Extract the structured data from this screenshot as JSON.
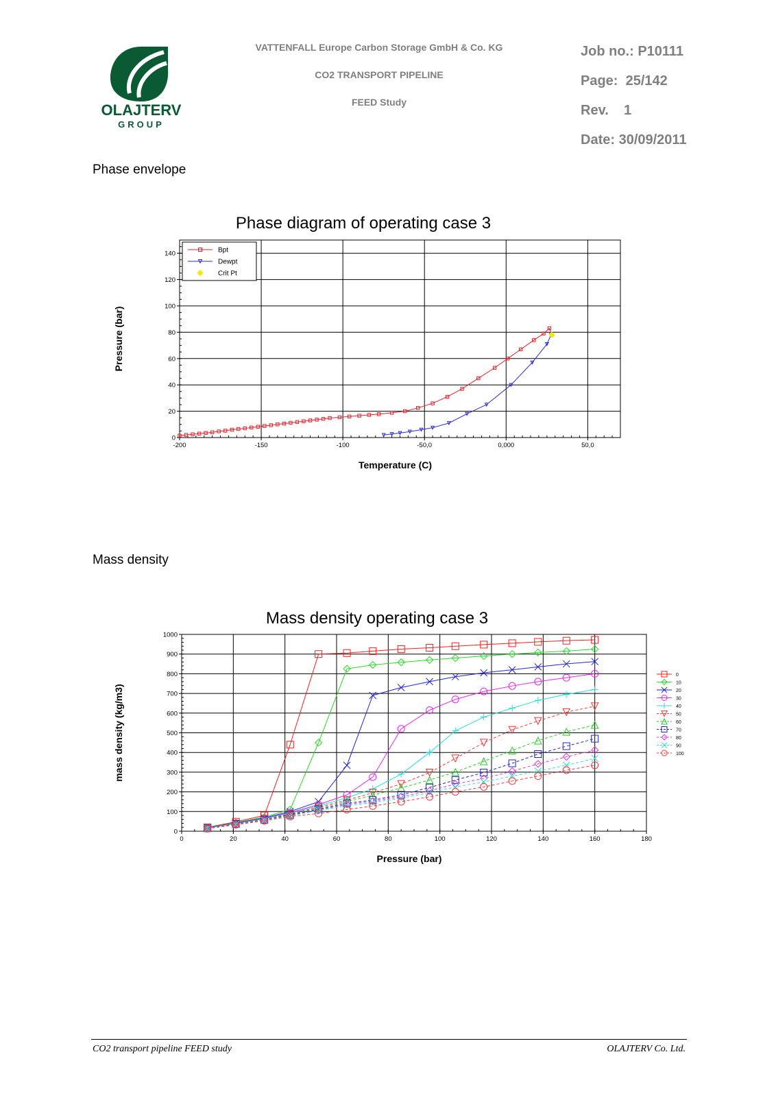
{
  "header": {
    "logo_text": "OLAJTERV",
    "logo_sub": "GROUP",
    "company": "VATTENFALL Europe Carbon Storage GmbH & Co. KG",
    "project": "CO2 TRANSPORT PIPELINE",
    "study": "FEED Study",
    "job_no": "Job no.: P10111",
    "page": "Page:  25/142",
    "rev": "Rev.    1",
    "date": "Date: 30/09/2011",
    "colors": {
      "logo_green": "#0a5a34",
      "header_grey": "#7f7f7f"
    }
  },
  "sections": {
    "phase": "Phase envelope",
    "density": "Mass density"
  },
  "footer": {
    "left": "CO2 transport pipeline FEED study",
    "right": "OLAJTERV Co. Ltd."
  },
  "chart_data": [
    {
      "type": "line",
      "title": "Phase diagram of operating case 3",
      "xlabel": "Temperature (C)",
      "ylabel": "Pressure (bar)",
      "xlim": [
        -200,
        70
      ],
      "ylim": [
        0,
        150
      ],
      "xticks": [
        -200,
        -150,
        -100,
        -50,
        0,
        50
      ],
      "xtick_labels": [
        "-200",
        "-150",
        "-100",
        "-50,0",
        "0,000",
        "50,0"
      ],
      "yticks": [
        0,
        20,
        40,
        60,
        80,
        100,
        120,
        140
      ],
      "grid": true,
      "legend": "top-left",
      "series": [
        {
          "name": "Bpt",
          "color": "#e8202a",
          "marker": "square",
          "x": [
            -200,
            -196,
            -192,
            -188,
            -184,
            -180,
            -176,
            -172,
            -168,
            -164,
            -160,
            -156,
            -152,
            -148,
            -144,
            -140,
            -136,
            -132,
            -128,
            -124,
            -120,
            -116,
            -112,
            -108,
            -102,
            -96,
            -90,
            -84,
            -78,
            -70,
            -62,
            -54,
            -45,
            -36,
            -27,
            -17,
            -7,
            1,
            9,
            17,
            23,
            26.5,
            28
          ],
          "y": [
            1.5,
            2,
            2.5,
            3,
            3.5,
            4,
            4.7,
            5.2,
            6,
            6.5,
            7,
            7.6,
            8.2,
            8.8,
            9.4,
            10,
            10.6,
            11.2,
            11.8,
            12.4,
            13,
            13.6,
            14.2,
            14.8,
            15.4,
            16,
            16.6,
            17.2,
            17.8,
            18.8,
            20,
            22.5,
            26,
            31,
            37,
            45,
            53,
            60,
            67,
            74,
            79,
            83,
            78
          ]
        },
        {
          "name": "Dewpt",
          "color": "#2a2adc",
          "marker": "triangle-down",
          "x": [
            -75,
            -70,
            -65,
            -59,
            -52,
            -45,
            -35,
            -24,
            -12,
            3,
            16,
            25,
            27.5
          ],
          "y": [
            2,
            2.7,
            3.5,
            4.5,
            6,
            7.5,
            11,
            18,
            25,
            40,
            57,
            71,
            78
          ]
        },
        {
          "name": "Crit Pt",
          "color": "#f5e900",
          "marker": "diamond",
          "x": [
            28
          ],
          "y": [
            78
          ]
        }
      ]
    },
    {
      "type": "line",
      "title": "Mass density operating case 3",
      "xlabel": "Pressure (bar)",
      "ylabel": "mass density (kg/m3)",
      "xlim": [
        0,
        180
      ],
      "ylim": [
        0,
        1000
      ],
      "xticks": [
        0,
        20,
        40,
        60,
        80,
        100,
        120,
        140,
        160,
        180
      ],
      "yticks": [
        0,
        100,
        200,
        300,
        400,
        500,
        600,
        700,
        800,
        900,
        1000
      ],
      "grid": true,
      "legend": "right",
      "x": [
        10,
        21,
        32,
        42,
        53,
        64,
        74,
        85,
        96,
        106,
        117,
        128,
        138,
        149,
        160
      ],
      "series": [
        {
          "name": "0",
          "color": "#ff1a1a",
          "marker": "square",
          "dash": false,
          "values": [
            20,
            48,
            80,
            440,
            900,
            905,
            915,
            925,
            932,
            940,
            948,
            955,
            962,
            968,
            972
          ]
        },
        {
          "name": "10",
          "color": "#22dd22",
          "marker": "diamond",
          "dash": false,
          "values": [
            18,
            44,
            72,
            110,
            450,
            825,
            845,
            858,
            870,
            880,
            890,
            900,
            908,
            915,
            925
          ]
        },
        {
          "name": "20",
          "color": "#2222dd",
          "marker": "x",
          "dash": false,
          "values": [
            17,
            42,
            68,
            100,
            150,
            335,
            690,
            730,
            760,
            785,
            805,
            820,
            835,
            850,
            862
          ]
        },
        {
          "name": "30",
          "color": "#ee22ee",
          "marker": "circle",
          "dash": false,
          "values": [
            16,
            40,
            65,
            95,
            135,
            185,
            275,
            520,
            615,
            670,
            710,
            738,
            760,
            780,
            800
          ]
        },
        {
          "name": "40",
          "color": "#22dddd",
          "marker": "plus",
          "dash": false,
          "values": [
            16,
            39,
            63,
            92,
            128,
            170,
            215,
            290,
            400,
            510,
            580,
            625,
            665,
            695,
            720
          ]
        },
        {
          "name": "50",
          "color": "#ff3333",
          "marker": "triangle-down",
          "dash": true,
          "values": [
            15,
            38,
            61,
            89,
            122,
            158,
            195,
            240,
            298,
            370,
            450,
            515,
            560,
            605,
            635
          ]
        },
        {
          "name": "60",
          "color": "#22cc22",
          "marker": "triangle",
          "dash": true,
          "values": [
            15,
            37,
            59,
            86,
            117,
            150,
            183,
            220,
            260,
            300,
            355,
            410,
            460,
            505,
            540
          ]
        },
        {
          "name": "70",
          "color": "#2222cc",
          "marker": "square",
          "dash": true,
          "values": [
            15,
            36,
            57,
            83,
            112,
            142,
            158,
            185,
            222,
            260,
            298,
            345,
            392,
            432,
            470
          ]
        },
        {
          "name": "80",
          "color": "#dd33dd",
          "marker": "diamond",
          "dash": true,
          "values": [
            14,
            35,
            56,
            80,
            108,
            136,
            152,
            176,
            205,
            240,
            268,
            305,
            342,
            378,
            412
          ]
        },
        {
          "name": "90",
          "color": "#33dddd",
          "marker": "x",
          "dash": true,
          "values": [
            14,
            34,
            55,
            78,
            105,
            130,
            145,
            168,
            195,
            225,
            250,
            280,
            305,
            335,
            370
          ]
        },
        {
          "name": "100",
          "color": "#ff3333",
          "marker": "circle",
          "dash": true,
          "values": [
            13,
            33,
            53,
            75,
            90,
            110,
            128,
            150,
            175,
            200,
            225,
            255,
            280,
            310,
            335
          ]
        }
      ]
    }
  ]
}
